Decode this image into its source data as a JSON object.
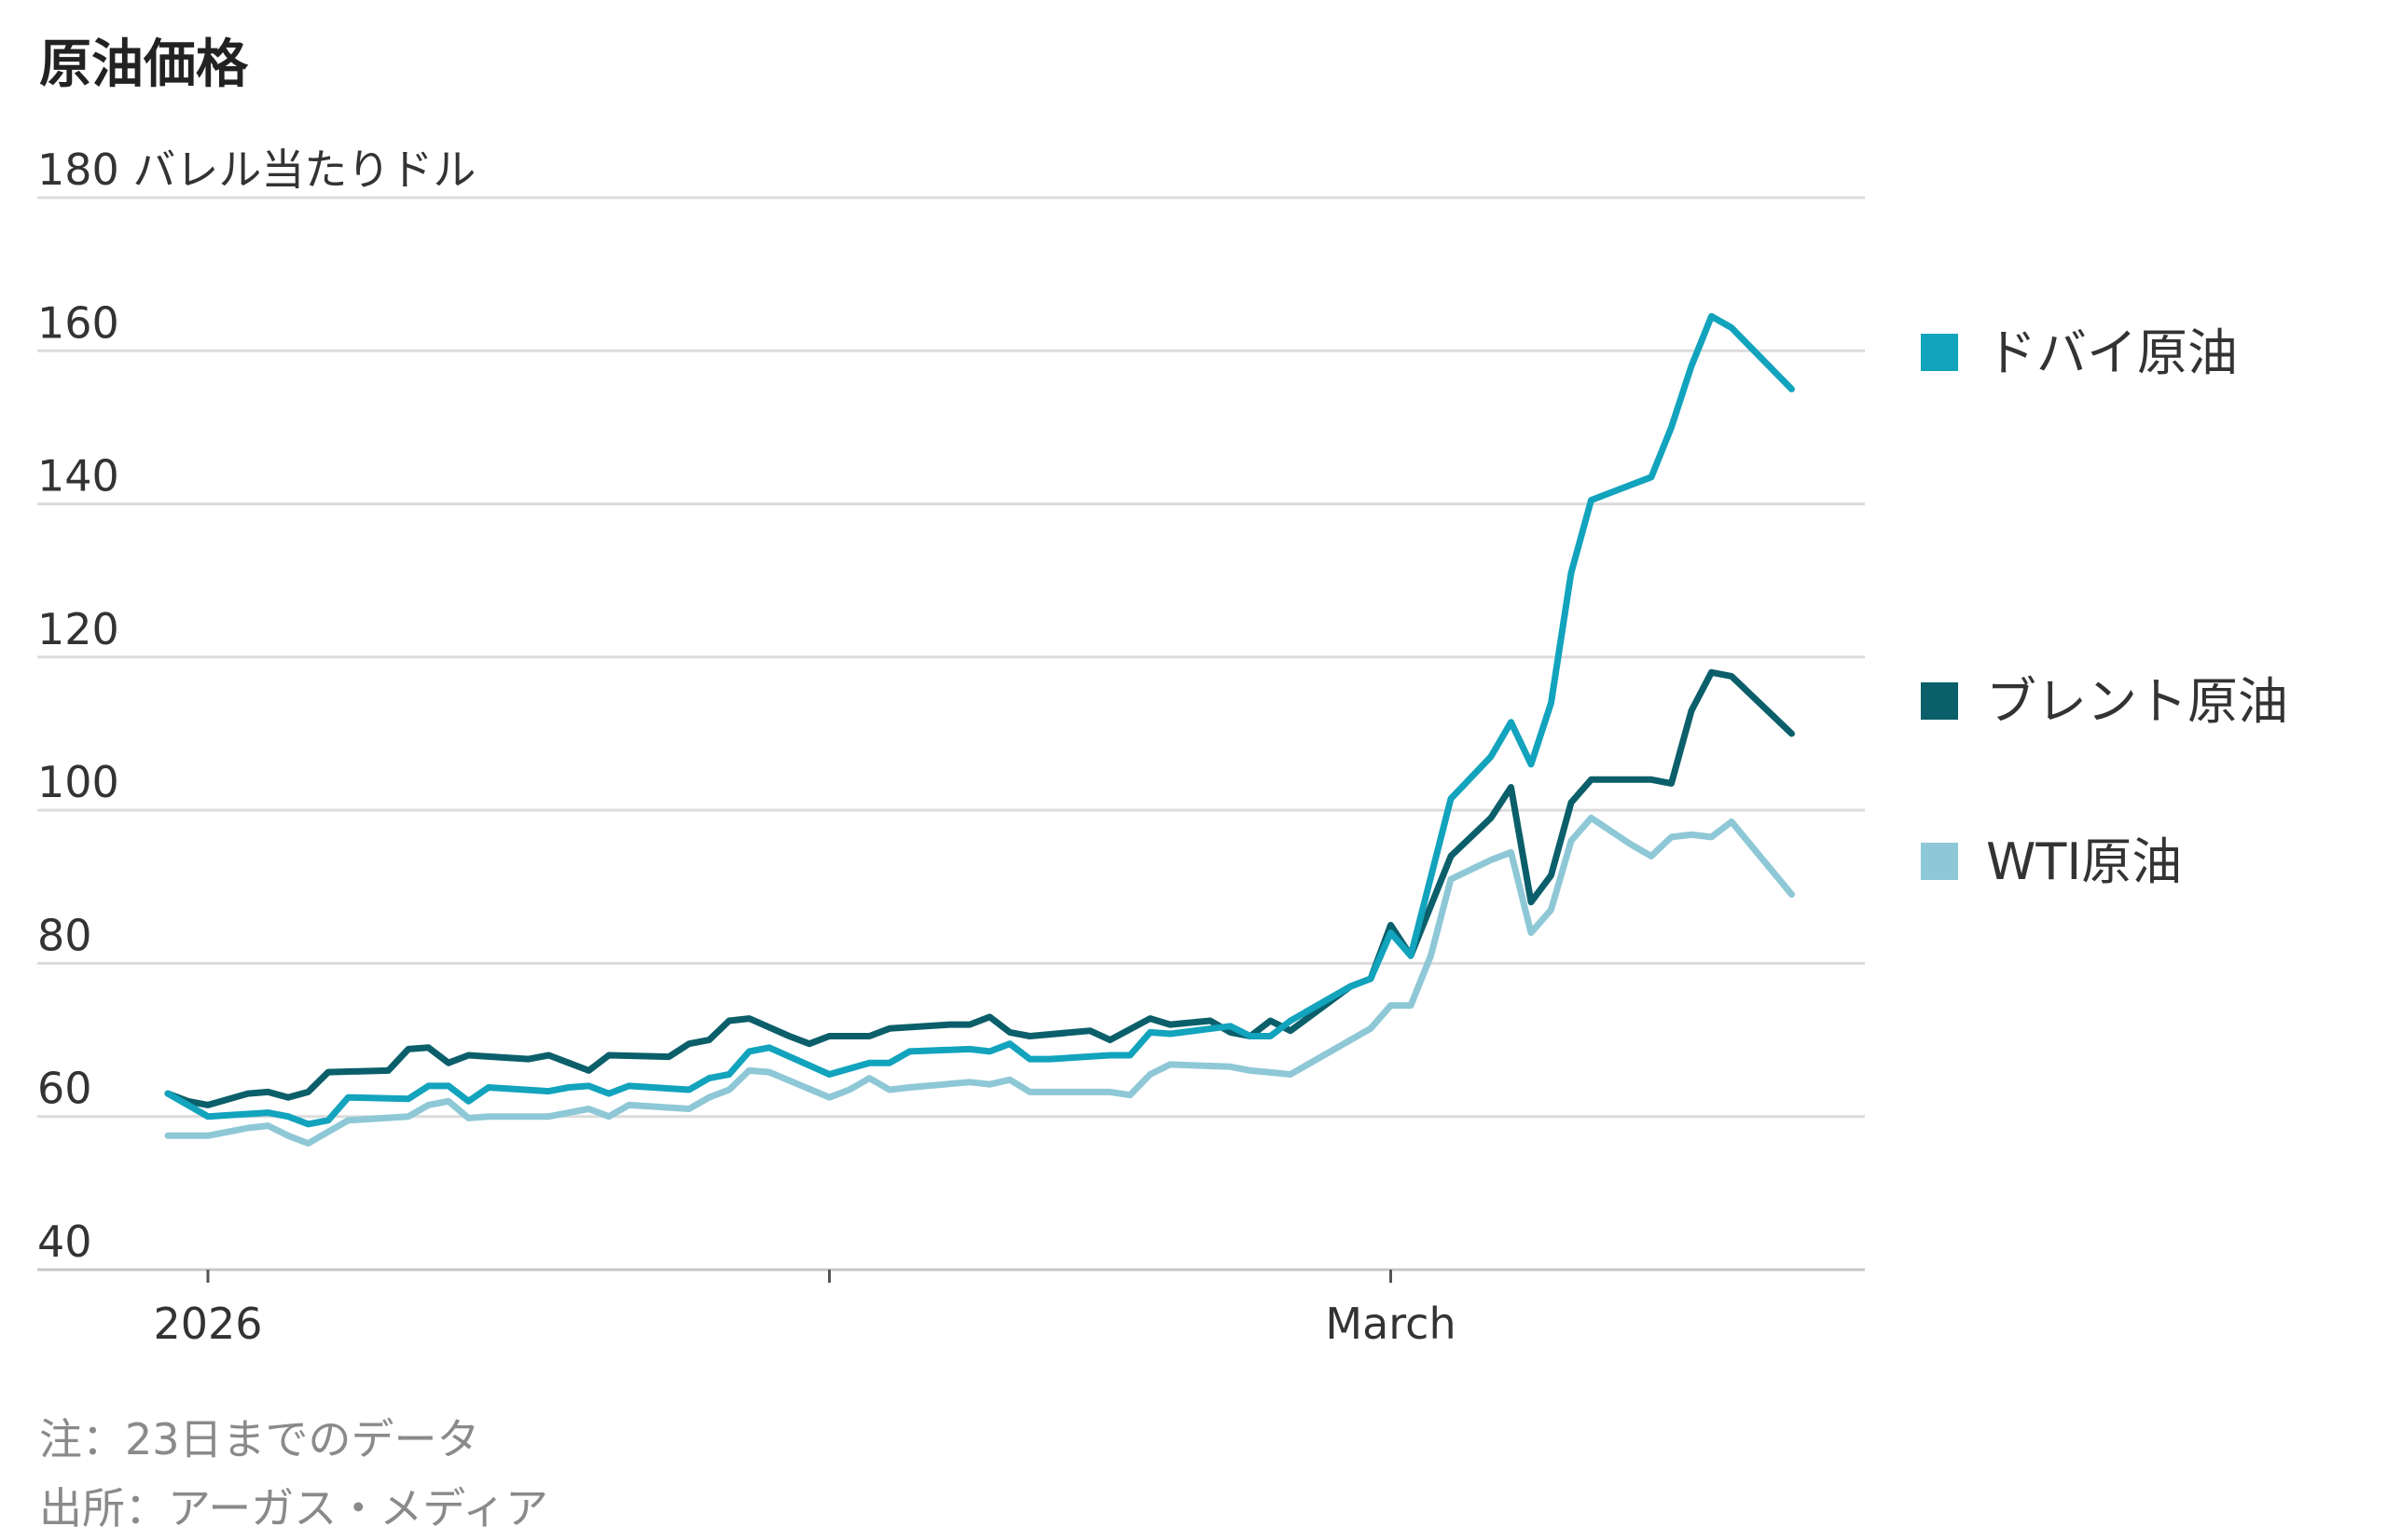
{
  "title": "原油価格",
  "notes": {
    "note": "注：23日までのデータ",
    "source": "出所：アーガス・メディア"
  },
  "chart_data": {
    "type": "line",
    "title": "原油価格",
    "ylabel": "バレル当たりドル",
    "y_top_label": "180 バレル当たりドル",
    "ylim": [
      40,
      180
    ],
    "yticks": [
      "40",
      "60",
      "80",
      "100",
      "120",
      "140",
      "160"
    ],
    "grid": true,
    "legend_placement": "right",
    "x_ticks": [
      {
        "label": "2026",
        "day": 2
      },
      {
        "label": "",
        "day": 33
      },
      {
        "label": "March",
        "day": 61
      }
    ],
    "series": [
      {
        "name": "ドバイ原油",
        "color": "#12a3bd",
        "points": [
          [
            0,
            63
          ],
          [
            2,
            60
          ],
          [
            5,
            60.5
          ],
          [
            6,
            60
          ],
          [
            7,
            59
          ],
          [
            8,
            59.5
          ],
          [
            9,
            62.5
          ],
          [
            12,
            62.3
          ],
          [
            13,
            64
          ],
          [
            14,
            64
          ],
          [
            15,
            62
          ],
          [
            16,
            63.8
          ],
          [
            19,
            63.3
          ],
          [
            20,
            63.8
          ],
          [
            21,
            64
          ],
          [
            22,
            63
          ],
          [
            23,
            64
          ],
          [
            26,
            63.5
          ],
          [
            27,
            65
          ],
          [
            28,
            65.5
          ],
          [
            29,
            68.5
          ],
          [
            30,
            69
          ],
          [
            33,
            65.5
          ],
          [
            35,
            67
          ],
          [
            36,
            67
          ],
          [
            37,
            68.5
          ],
          [
            40,
            68.8
          ],
          [
            41,
            68.5
          ],
          [
            42,
            69.5
          ],
          [
            43,
            67.5
          ],
          [
            44,
            67.5
          ],
          [
            47,
            68
          ],
          [
            48,
            68
          ],
          [
            49,
            71
          ],
          [
            50,
            70.8
          ],
          [
            53,
            71.8
          ],
          [
            54,
            70.5
          ],
          [
            55,
            70.5
          ],
          [
            56,
            72.5
          ],
          [
            59,
            77
          ],
          [
            60,
            78
          ],
          [
            61,
            84
          ],
          [
            62,
            81
          ],
          [
            64,
            101.5
          ],
          [
            66,
            107
          ],
          [
            67,
            111.5
          ],
          [
            68,
            106
          ],
          [
            69,
            114
          ],
          [
            70,
            131
          ],
          [
            71,
            140.5
          ],
          [
            73,
            142.5
          ],
          [
            74,
            143.5
          ],
          [
            75,
            150
          ],
          [
            76,
            158
          ],
          [
            77,
            164.5
          ],
          [
            78,
            163
          ],
          [
            81,
            155
          ]
        ]
      },
      {
        "name": "ブレント原油",
        "color": "#0b5f6a",
        "points": [
          [
            0,
            63
          ],
          [
            1,
            62
          ],
          [
            2,
            61.5
          ],
          [
            4,
            63
          ],
          [
            5,
            63.2
          ],
          [
            6,
            62.5
          ],
          [
            7,
            63.2
          ],
          [
            8,
            65.8
          ],
          [
            11,
            66
          ],
          [
            12,
            68.8
          ],
          [
            13,
            69
          ],
          [
            14,
            67
          ],
          [
            15,
            68
          ],
          [
            18,
            67.5
          ],
          [
            19,
            68
          ],
          [
            20,
            67
          ],
          [
            21,
            66
          ],
          [
            22,
            68
          ],
          [
            25,
            67.8
          ],
          [
            26,
            69.5
          ],
          [
            27,
            70
          ],
          [
            28,
            72.5
          ],
          [
            29,
            72.8
          ],
          [
            31,
            70.5
          ],
          [
            32,
            69.5
          ],
          [
            33,
            70.5
          ],
          [
            35,
            70.5
          ],
          [
            36,
            71.5
          ],
          [
            39,
            72
          ],
          [
            40,
            72
          ],
          [
            41,
            73
          ],
          [
            42,
            71
          ],
          [
            43,
            70.5
          ],
          [
            46,
            71.2
          ],
          [
            47,
            70
          ],
          [
            49,
            72.8
          ],
          [
            50,
            72
          ],
          [
            52,
            72.5
          ],
          [
            53,
            71
          ],
          [
            54,
            70.5
          ],
          [
            55,
            72.5
          ],
          [
            56,
            71.2
          ],
          [
            59,
            77
          ],
          [
            60,
            78
          ],
          [
            61,
            85
          ],
          [
            62,
            81
          ],
          [
            64,
            94
          ],
          [
            66,
            99
          ],
          [
            67,
            103
          ],
          [
            68,
            88
          ],
          [
            69,
            91.5
          ],
          [
            70,
            101
          ],
          [
            71,
            104
          ],
          [
            73,
            104
          ],
          [
            74,
            104
          ],
          [
            75,
            103.5
          ],
          [
            76,
            113
          ],
          [
            77,
            118
          ],
          [
            78,
            117.5
          ],
          [
            81,
            110
          ]
        ]
      },
      {
        "name": "WTI原油",
        "color": "#8ec8d6",
        "points": [
          [
            0,
            57.5
          ],
          [
            2,
            57.5
          ],
          [
            4,
            58.5
          ],
          [
            5,
            58.8
          ],
          [
            6,
            57.5
          ],
          [
            7,
            56.5
          ],
          [
            8,
            58
          ],
          [
            9,
            59.5
          ],
          [
            12,
            60
          ],
          [
            13,
            61.5
          ],
          [
            14,
            62
          ],
          [
            15,
            59.8
          ],
          [
            16,
            60
          ],
          [
            19,
            60
          ],
          [
            20,
            60.5
          ],
          [
            21,
            61
          ],
          [
            22,
            60
          ],
          [
            23,
            61.5
          ],
          [
            26,
            61
          ],
          [
            27,
            62.5
          ],
          [
            28,
            63.5
          ],
          [
            29,
            66
          ],
          [
            30,
            65.8
          ],
          [
            33,
            62.5
          ],
          [
            34,
            63.5
          ],
          [
            35,
            65
          ],
          [
            36,
            63.5
          ],
          [
            37,
            63.8
          ],
          [
            40,
            64.5
          ],
          [
            41,
            64.2
          ],
          [
            42,
            64.8
          ],
          [
            43,
            63.2
          ],
          [
            44,
            63.2
          ],
          [
            47,
            63.2
          ],
          [
            48,
            62.8
          ],
          [
            49,
            65.5
          ],
          [
            50,
            66.8
          ],
          [
            53,
            66.5
          ],
          [
            54,
            66
          ],
          [
            56,
            65.5
          ],
          [
            59,
            70
          ],
          [
            60,
            71.5
          ],
          [
            61,
            74.5
          ],
          [
            62,
            74.5
          ],
          [
            63,
            81
          ],
          [
            64,
            91
          ],
          [
            66,
            93.5
          ],
          [
            67,
            94.5
          ],
          [
            68,
            84
          ],
          [
            69,
            87
          ],
          [
            70,
            96
          ],
          [
            71,
            99
          ],
          [
            73,
            95.5
          ],
          [
            74,
            94
          ],
          [
            75,
            96.5
          ],
          [
            76,
            96.8
          ],
          [
            77,
            96.5
          ],
          [
            78,
            98.5
          ],
          [
            81,
            89
          ]
        ]
      }
    ]
  }
}
